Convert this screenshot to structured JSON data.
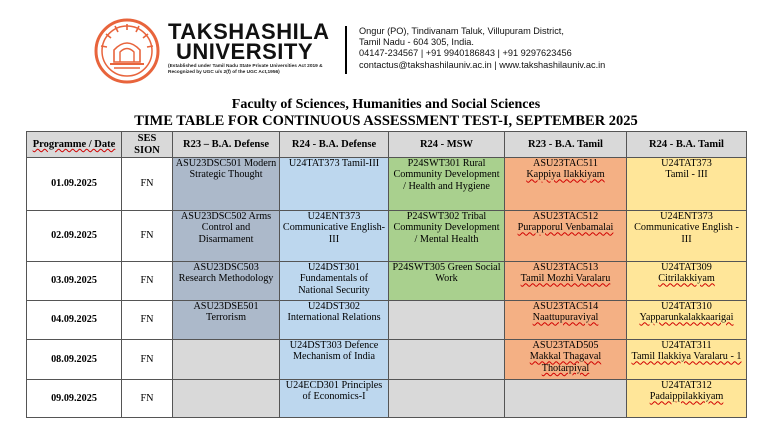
{
  "header": {
    "university_line1": "TAKSHASHILA",
    "university_line2": "UNIVERSITY",
    "establishment_note": "(Established under Tamil Nadu State Private Universities Act 2019 & Recognized by UGC u/s 2(f) of the UGC Act,1956)",
    "address_line1": "Ongur (PO), Tindivanam Taluk, Villupuram District,",
    "address_line2": "Tamil Nadu - 604 305, India.",
    "phone": "04147-234567 | +91 9940186843 | +91 9297623456",
    "contact": "contactus@takshashilauniv.ac.in | www.takshashilauniv.ac.in",
    "logo_icon": "takshashila-logo",
    "brand_color": "#e8643c"
  },
  "faculty": "Faculty of Sciences, Humanities and Social Sciences",
  "title": "TIME TABLE FOR CONTINUOUS ASSESSMENT TEST-I, SEPTEMBER 2025",
  "table": {
    "headers": [
      "Programme / Date",
      "SES SION",
      "R23 – B.A. Defense",
      "R24 - B.A. Defense",
      "R24 - MSW",
      "R23 - B.A. Tamil",
      "R24 - B.A. Tamil"
    ],
    "rows": [
      {
        "date": "01.09.2025",
        "session": "FN",
        "r23_def": "ASU23DSC501 Modern Strategic Thought",
        "r24_def": "U24TAT373 Tamil-III",
        "msw": "P24SWT301 Rural Community Development / Health and Hygiene",
        "r23_tam_code": "ASU23TAC511",
        "r23_tam_name": "Kappiya Ilakkiyam",
        "r24_tam_code": "U24TAT373",
        "r24_tam_name": "Tamil - III"
      },
      {
        "date": "02.09.2025",
        "session": "FN",
        "r23_def": "ASU23DSC502 Arms Control and Disarmament",
        "r24_def": "U24ENT373 Communicative English-III",
        "msw": "P24SWT302 Tribal Community Development / Mental Health",
        "r23_tam_code": "ASU23TAC512",
        "r23_tam_name": "Purapporul Venbamalai",
        "r24_tam_code": "U24ENT373",
        "r24_tam_name": "Communicative English - III"
      },
      {
        "date": "03.09.2025",
        "session": "FN",
        "r23_def": "ASU23DSC503 Research Methodology",
        "r24_def": "U24DST301 Fundamentals of National Security",
        "msw": "P24SWT305 Green Social Work",
        "r23_tam_code": "ASU23TAC513",
        "r23_tam_name": "Tamil Mozhi Varalaru",
        "r24_tam_code": "U24TAT309",
        "r24_tam_name": "Citrilakkiyam"
      },
      {
        "date": "04.09.2025",
        "session": "FN",
        "r23_def": "ASU23DSE501 Terrorism",
        "r24_def": "U24DST302 International Relations",
        "msw": "",
        "r23_tam_code": "ASU23TAC514",
        "r23_tam_name": "Naattupuraviyal",
        "r24_tam_code": "U24TAT310",
        "r24_tam_name": "Yapparunkalakkaarigai"
      },
      {
        "date": "08.09.2025",
        "session": "FN",
        "r23_def": "",
        "r24_def": "U24DST303 Defence Mechanism of India",
        "msw": "",
        "r23_tam_code": "ASU23TAD505",
        "r23_tam_name": "Makkal Thagaval Thotarpiyal",
        "r24_tam_code": "U24TAT311",
        "r24_tam_name": "Tamil Ilakkiya Varalaru - 1"
      },
      {
        "date": "09.09.2025",
        "session": "FN",
        "r23_def": "",
        "r24_def": "U24ECD301 Principles of Economics-I",
        "msw": "",
        "r23_tam_code": "",
        "r23_tam_name": "",
        "r24_tam_code": "U24TAT312",
        "r24_tam_name": "Padaippilakkiyam"
      }
    ]
  },
  "colors": {
    "r23_defense": "#acb9ca",
    "r24_defense": "#bdd7ee",
    "r24_msw": "#a9d08e",
    "r23_tamil": "#f4b084",
    "r24_tamil": "#ffe699",
    "empty_cell": "#d9d9d9",
    "header_cell": "#d9d9d9"
  }
}
